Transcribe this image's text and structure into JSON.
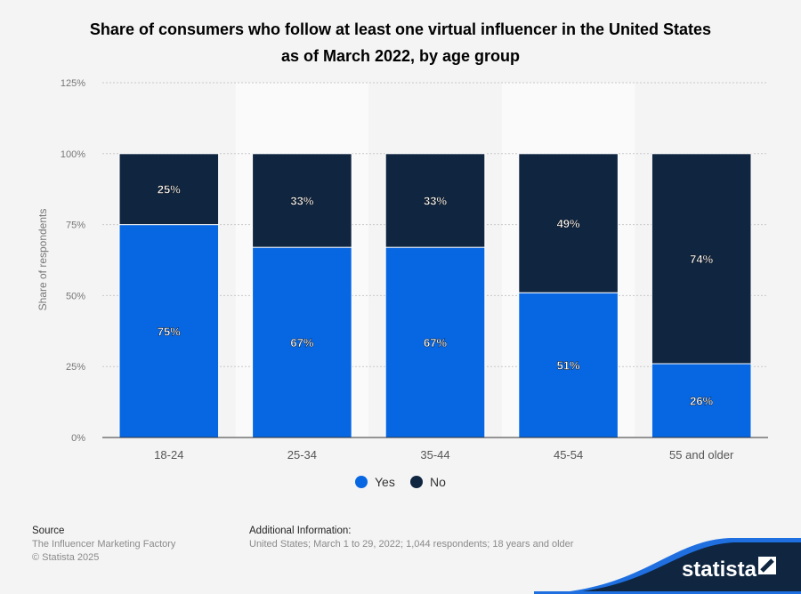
{
  "chart_data": {
    "type": "bar",
    "stacked": true,
    "title": "Share of consumers who follow at least one virtual influencer in the United States as of March 2022, by age group",
    "title_lines": [
      "Share of consumers who follow at least one virtual influencer in the United States",
      "as of March 2022, by age group"
    ],
    "categories": [
      "18-24",
      "25-34",
      "35-44",
      "45-54",
      "55 and older"
    ],
    "series": [
      {
        "name": "Yes",
        "color": "#0766e2",
        "values": [
          75,
          67,
          67,
          51,
          26
        ]
      },
      {
        "name": "No",
        "color": "#0f2540",
        "values": [
          25,
          33,
          33,
          49,
          74
        ]
      }
    ],
    "ylabel": "Share of respondents",
    "ylim": [
      0,
      125
    ],
    "yticks": [
      "0%",
      "25%",
      "50%",
      "75%",
      "100%",
      "125%"
    ],
    "grid": true,
    "legend": "bottom"
  },
  "footer": {
    "source_label": "Source",
    "source": "The Influencer Marketing Factory",
    "copyright": "© Statista 2025",
    "info_label": "Additional Information:",
    "info": "United States; March 1 to 29, 2022; 1,044 respondents; 18 years and older",
    "logo": "statista"
  }
}
